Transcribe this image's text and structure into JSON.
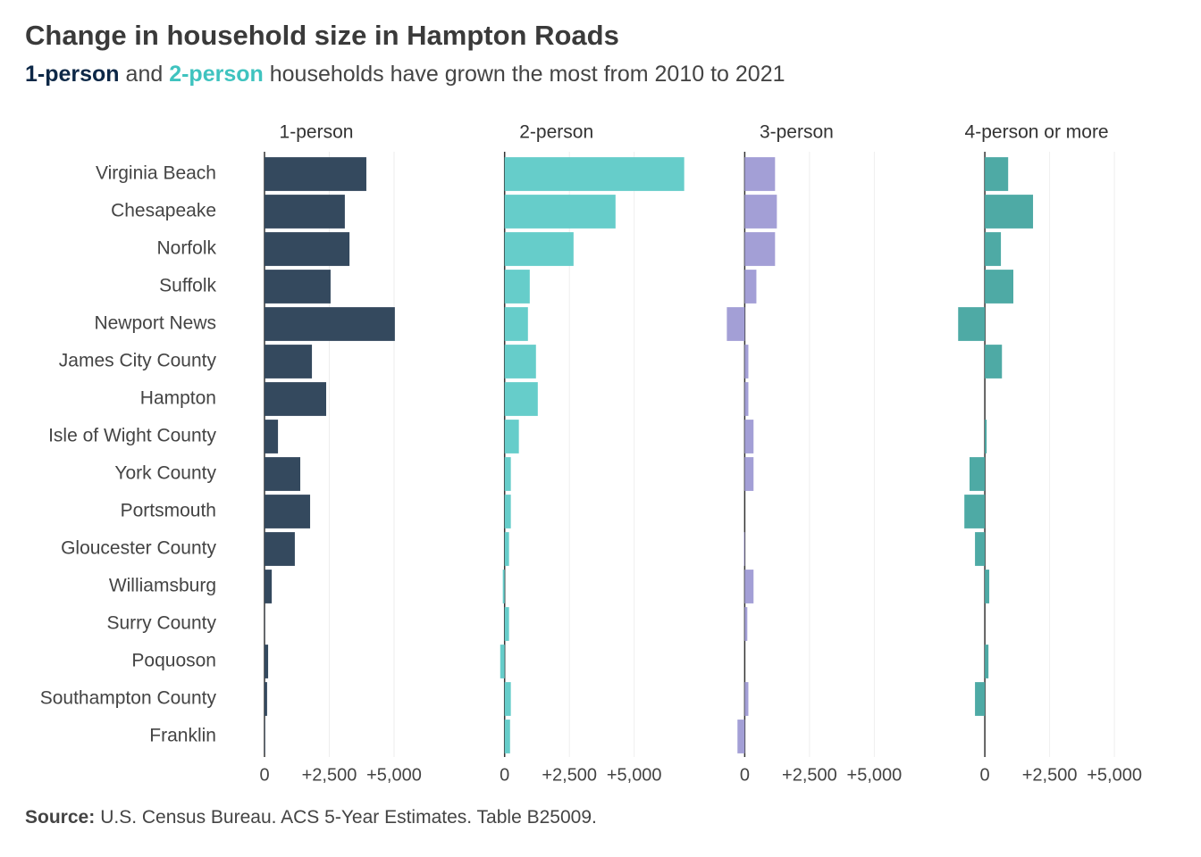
{
  "title": "Change in household size in Hampton Roads",
  "subtitle": [
    {
      "text": "1-person",
      "color": "#0d2847",
      "bold": true
    },
    {
      "text": " and "
    },
    {
      "text": "2-person",
      "color": "#3fc3bf",
      "bold": true
    },
    {
      "text": " households have grown the most from 2010 to 2021"
    }
  ],
  "source_label": "Source:",
  "source": "U.S. Census Bureau. ACS 5-Year Estimates. Table B25009.",
  "chart_data": {
    "type": "bar",
    "orientation": "horizontal",
    "categories": [
      "Virginia Beach",
      "Chesapeake",
      "Norfolk",
      "Suffolk",
      "Newport News",
      "James City County",
      "Hampton",
      "Isle of Wight County",
      "York County",
      "Portsmouth",
      "Gloucester County",
      "Williamsburg",
      "Surry County",
      "Poquoson",
      "Southampton County",
      "Franklin"
    ],
    "series": [
      {
        "name": "1-person",
        "color": "#34495e",
        "values": [
          3930,
          3100,
          3280,
          2550,
          5030,
          1830,
          2380,
          520,
          1380,
          1760,
          1170,
          280,
          10,
          140,
          100,
          20
        ]
      },
      {
        "name": "2-person",
        "color": "#66cdca",
        "values": [
          6930,
          4280,
          2660,
          970,
          900,
          1210,
          1280,
          550,
          240,
          240,
          170,
          -70,
          170,
          -170,
          240,
          210
        ]
      },
      {
        "name": "3-person",
        "color": "#a39fd6",
        "values": [
          1170,
          1240,
          1170,
          450,
          -690,
          140,
          140,
          340,
          340,
          0,
          -30,
          340,
          100,
          0,
          140,
          -280
        ]
      },
      {
        "name": "4-person or more",
        "color": "#4eaaa5",
        "values": [
          900,
          1860,
          620,
          1100,
          -1030,
          660,
          0,
          70,
          -590,
          -790,
          -380,
          170,
          0,
          140,
          -380,
          0
        ]
      }
    ],
    "xlim": [
      -1000,
      7000
    ],
    "xticks": [
      0,
      {
        "value": 2500,
        "label": "+2,500"
      },
      {
        "value": 5000,
        "label": "+5,000"
      }
    ],
    "grid": true
  }
}
